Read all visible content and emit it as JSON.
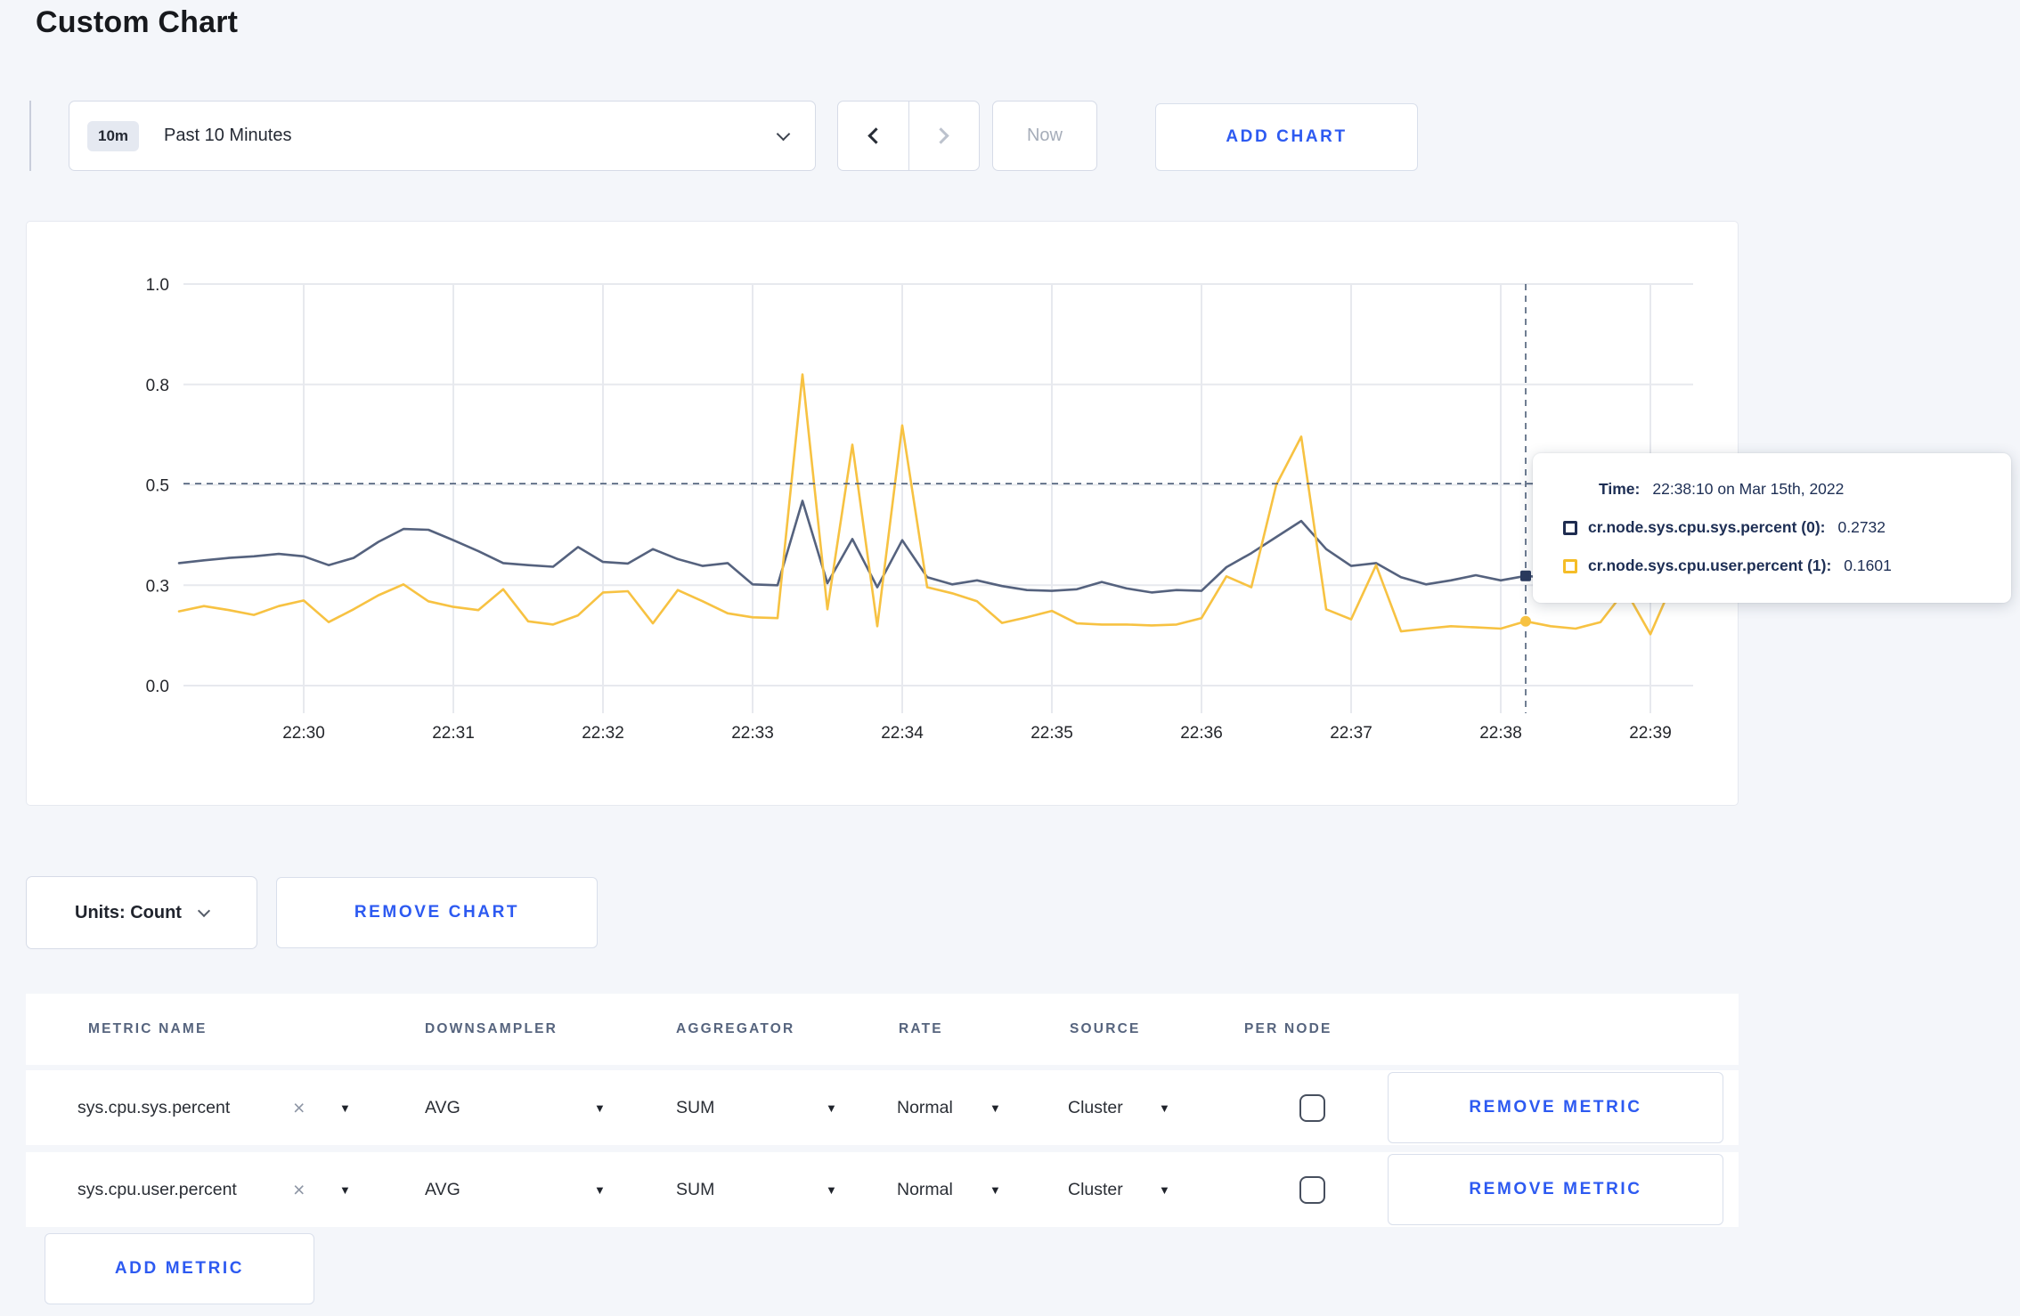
{
  "page": {
    "title": "Custom Chart"
  },
  "colors": {
    "accent_blue": "#2d5af1",
    "series_sys": "#55627e",
    "series_user": "#f7c242",
    "grid": "#e7e9ee",
    "crosshair": "#4c5e78",
    "axis_text": "#24262b"
  },
  "toolbar": {
    "time_range": {
      "badge": "10m",
      "label": "Past 10 Minutes"
    },
    "now_label": "Now",
    "add_chart_label": "ADD CHART",
    "icons": {
      "prev": "chevron-left",
      "next": "chevron-right",
      "open": "chevron-down"
    }
  },
  "chart_data": {
    "type": "line",
    "title": "",
    "xlabel": "",
    "ylabel": "",
    "ylim": [
      0,
      1
    ],
    "grid": true,
    "x_ticks": [
      "22:30",
      "22:31",
      "22:32",
      "22:33",
      "22:34",
      "22:35",
      "22:36",
      "22:37",
      "22:38",
      "22:39"
    ],
    "y_ticks": {
      "labels": [
        "0.0",
        "0.3",
        "0.5",
        "0.8",
        "1.0"
      ],
      "positions": [
        0,
        0.25,
        0.5,
        0.75,
        1.0
      ]
    },
    "x_start": "22:29:10",
    "x_end": "22:39:10",
    "interval_seconds": 10,
    "seconds_before_first_tick": 50,
    "series": [
      {
        "name": "cr.node.sys.cpu.sys.percent",
        "color": "#55627e",
        "values": [
          0.305,
          0.312,
          0.318,
          0.322,
          0.328,
          0.322,
          0.3,
          0.318,
          0.358,
          0.39,
          0.388,
          0.362,
          0.335,
          0.305,
          0.3,
          0.296,
          0.345,
          0.308,
          0.304,
          0.34,
          0.315,
          0.298,
          0.305,
          0.252,
          0.25,
          0.46,
          0.255,
          0.365,
          0.245,
          0.362,
          0.27,
          0.252,
          0.262,
          0.248,
          0.238,
          0.236,
          0.24,
          0.258,
          0.242,
          0.232,
          0.238,
          0.236,
          0.295,
          0.33,
          0.37,
          0.41,
          0.34,
          0.298,
          0.305,
          0.27,
          0.252,
          0.262,
          0.275,
          0.262,
          0.2732,
          0.268,
          0.278,
          0.308,
          0.295,
          0.3,
          0.308
        ]
      },
      {
        "name": "cr.node.sys.cpu.user.percent",
        "color": "#f7c242",
        "values": [
          0.185,
          0.198,
          0.188,
          0.176,
          0.198,
          0.212,
          0.158,
          0.19,
          0.225,
          0.252,
          0.21,
          0.196,
          0.188,
          0.24,
          0.16,
          0.152,
          0.175,
          0.232,
          0.235,
          0.155,
          0.238,
          0.21,
          0.18,
          0.17,
          0.168,
          0.775,
          0.19,
          0.6,
          0.148,
          0.648,
          0.245,
          0.23,
          0.21,
          0.156,
          0.17,
          0.186,
          0.155,
          0.152,
          0.152,
          0.15,
          0.152,
          0.168,
          0.272,
          0.245,
          0.5,
          0.62,
          0.19,
          0.165,
          0.3,
          0.135,
          0.142,
          0.148,
          0.145,
          0.142,
          0.1601,
          0.148,
          0.142,
          0.158,
          0.238,
          0.128,
          0.27
        ]
      }
    ],
    "crosshair": {
      "x_index": 54,
      "y_fraction": 0.503,
      "time": "22:38:10"
    },
    "legend_position": "none"
  },
  "tooltip": {
    "time_label": "Time:",
    "time_value": "22:38:10 on Mar 15th, 2022",
    "rows": [
      {
        "label": "cr.node.sys.cpu.sys.percent (0):",
        "value": "0.2732",
        "swatch_color": "#1e2c50"
      },
      {
        "label": "cr.node.sys.cpu.user.percent (1):",
        "value": "0.1601",
        "swatch_color": "#f5bd27"
      }
    ]
  },
  "chart_controls": {
    "units_label": "Units: Count",
    "remove_chart_label": "REMOVE CHART"
  },
  "metrics_table": {
    "columns": [
      "METRIC NAME",
      "DOWNSAMPLER",
      "AGGREGATOR",
      "RATE",
      "SOURCE",
      "PER NODE"
    ],
    "remove_metric_label": "REMOVE METRIC",
    "add_metric_label": "ADD METRIC",
    "clear_icon": "×",
    "caret_icon": "▼",
    "rows": [
      {
        "metric_name": "sys.cpu.sys.percent",
        "downsampler": "AVG",
        "aggregator": "SUM",
        "rate": "Normal",
        "source": "Cluster",
        "per_node": false
      },
      {
        "metric_name": "sys.cpu.user.percent",
        "downsampler": "AVG",
        "aggregator": "SUM",
        "rate": "Normal",
        "source": "Cluster",
        "per_node": false
      }
    ]
  }
}
